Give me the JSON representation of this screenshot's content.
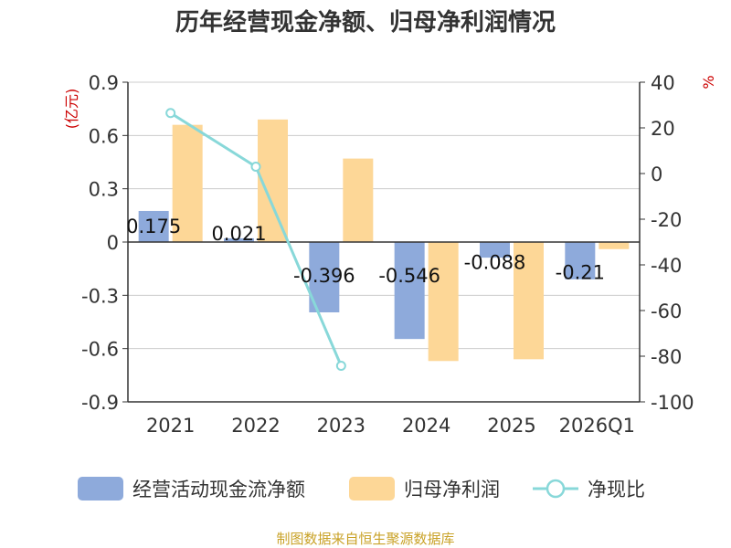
{
  "chart_data": {
    "type": "bar",
    "title": "历年经营现金净额、归母净利润情况",
    "categories": [
      "2021",
      "2022",
      "2023",
      "2024",
      "2025",
      "2026Q1"
    ],
    "series": [
      {
        "name": "经营活动现金流净额",
        "type": "bar",
        "axis": "left",
        "color": "#8eaadb",
        "values": [
          0.175,
          0.021,
          -0.396,
          -0.546,
          -0.088,
          -0.21
        ]
      },
      {
        "name": "归母净利润",
        "type": "bar",
        "axis": "left",
        "color": "#fdd797",
        "values": [
          0.66,
          0.69,
          0.47,
          -0.67,
          -0.66,
          -0.04
        ]
      },
      {
        "name": "净现比",
        "type": "line",
        "axis": "right",
        "color": "#88d8d9",
        "values": [
          26.5,
          3.0,
          -84.2,
          null,
          null,
          null
        ]
      }
    ],
    "data_labels": [
      "0.175",
      "0.021",
      "-0.396",
      "-0.546",
      "-0.088",
      "-0.21"
    ],
    "left_axis": {
      "unit": "(亿元)",
      "min": -0.9,
      "max": 0.9,
      "ticks": [
        0.9,
        0.6,
        0.3,
        0,
        -0.3,
        -0.6,
        -0.9
      ],
      "tick_labels": [
        "0.9",
        "0.6",
        "0.3",
        "0",
        "-0.3",
        "-0.6",
        "-0.9"
      ]
    },
    "right_axis": {
      "unit": "%",
      "min": -100,
      "max": 40,
      "ticks": [
        40,
        20,
        0,
        -20,
        -40,
        -60,
        -80,
        -100
      ],
      "tick_labels": [
        "40",
        "20",
        "0",
        "-20",
        "-40",
        "-60",
        "-80",
        "-100"
      ]
    },
    "grid": true,
    "legend_position": "bottom"
  },
  "colors": {
    "unit_red": "#cc0000",
    "source_gold": "#c9a227",
    "axis": "#333333",
    "grid": "#cccccc"
  },
  "source": "制图数据来自恒生聚源数据库"
}
